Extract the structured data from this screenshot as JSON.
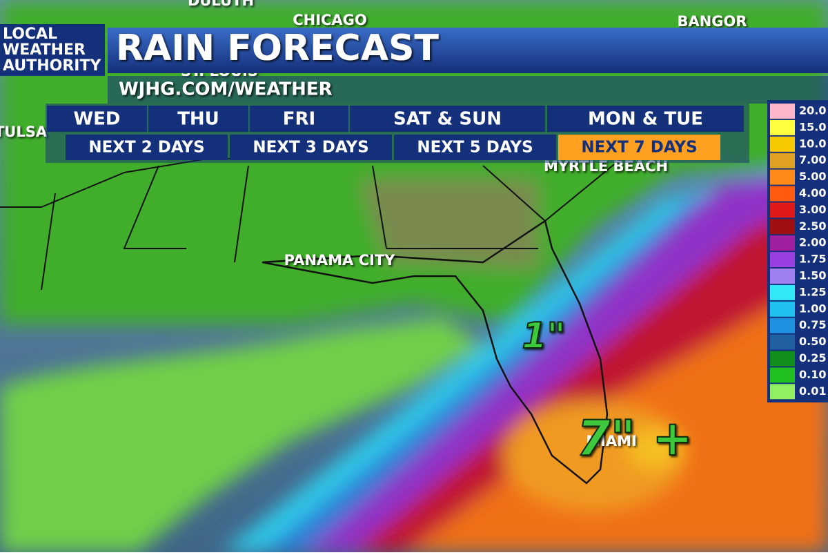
{
  "header": {
    "logo": [
      "LOCAL",
      "WEATHER",
      "AUTHORITY"
    ],
    "title": "RAIN FORECAST",
    "url": "WJHG.COM/WEATHER"
  },
  "day_tabs": [
    "WED",
    "THU",
    "FRI",
    "SAT & SUN",
    "MON & TUE"
  ],
  "range_tabs": [
    {
      "label": "NEXT 2 DAYS",
      "active": false
    },
    {
      "label": "NEXT 3 DAYS",
      "active": false
    },
    {
      "label": "NEXT 5 DAYS",
      "active": false
    },
    {
      "label": "NEXT 7 DAYS",
      "active": true
    }
  ],
  "cities": [
    "DULUTH",
    "CHICAGO",
    "BANGOR",
    "ST. LOUIS",
    "TULSA",
    "MYRTLE BEACH",
    "PANAMA CITY",
    "MIAMI"
  ],
  "annotations": [
    "1\"",
    "7\" +"
  ],
  "legend": [
    {
      "label": "20.0",
      "color": "#ffb6c8"
    },
    {
      "label": "15.0",
      "color": "#ffff40"
    },
    {
      "label": "10.0",
      "color": "#f5c800"
    },
    {
      "label": "7.00",
      "color": "#e0a020"
    },
    {
      "label": "5.00",
      "color": "#ff8a1a"
    },
    {
      "label": "4.00",
      "color": "#ff5a10"
    },
    {
      "label": "3.00",
      "color": "#e01818"
    },
    {
      "label": "2.50",
      "color": "#a01010"
    },
    {
      "label": "2.00",
      "color": "#a020a0"
    },
    {
      "label": "1.75",
      "color": "#9a40e0"
    },
    {
      "label": "1.50",
      "color": "#a080f0"
    },
    {
      "label": "1.25",
      "color": "#30e8f8"
    },
    {
      "label": "1.00",
      "color": "#20c0f0"
    },
    {
      "label": "0.75",
      "color": "#2090e0"
    },
    {
      "label": "0.50",
      "color": "#2060a0"
    },
    {
      "label": "0.25",
      "color": "#10901a"
    },
    {
      "label": "0.10",
      "color": "#20c020"
    },
    {
      "label": "0.01",
      "color": "#90f060"
    }
  ]
}
